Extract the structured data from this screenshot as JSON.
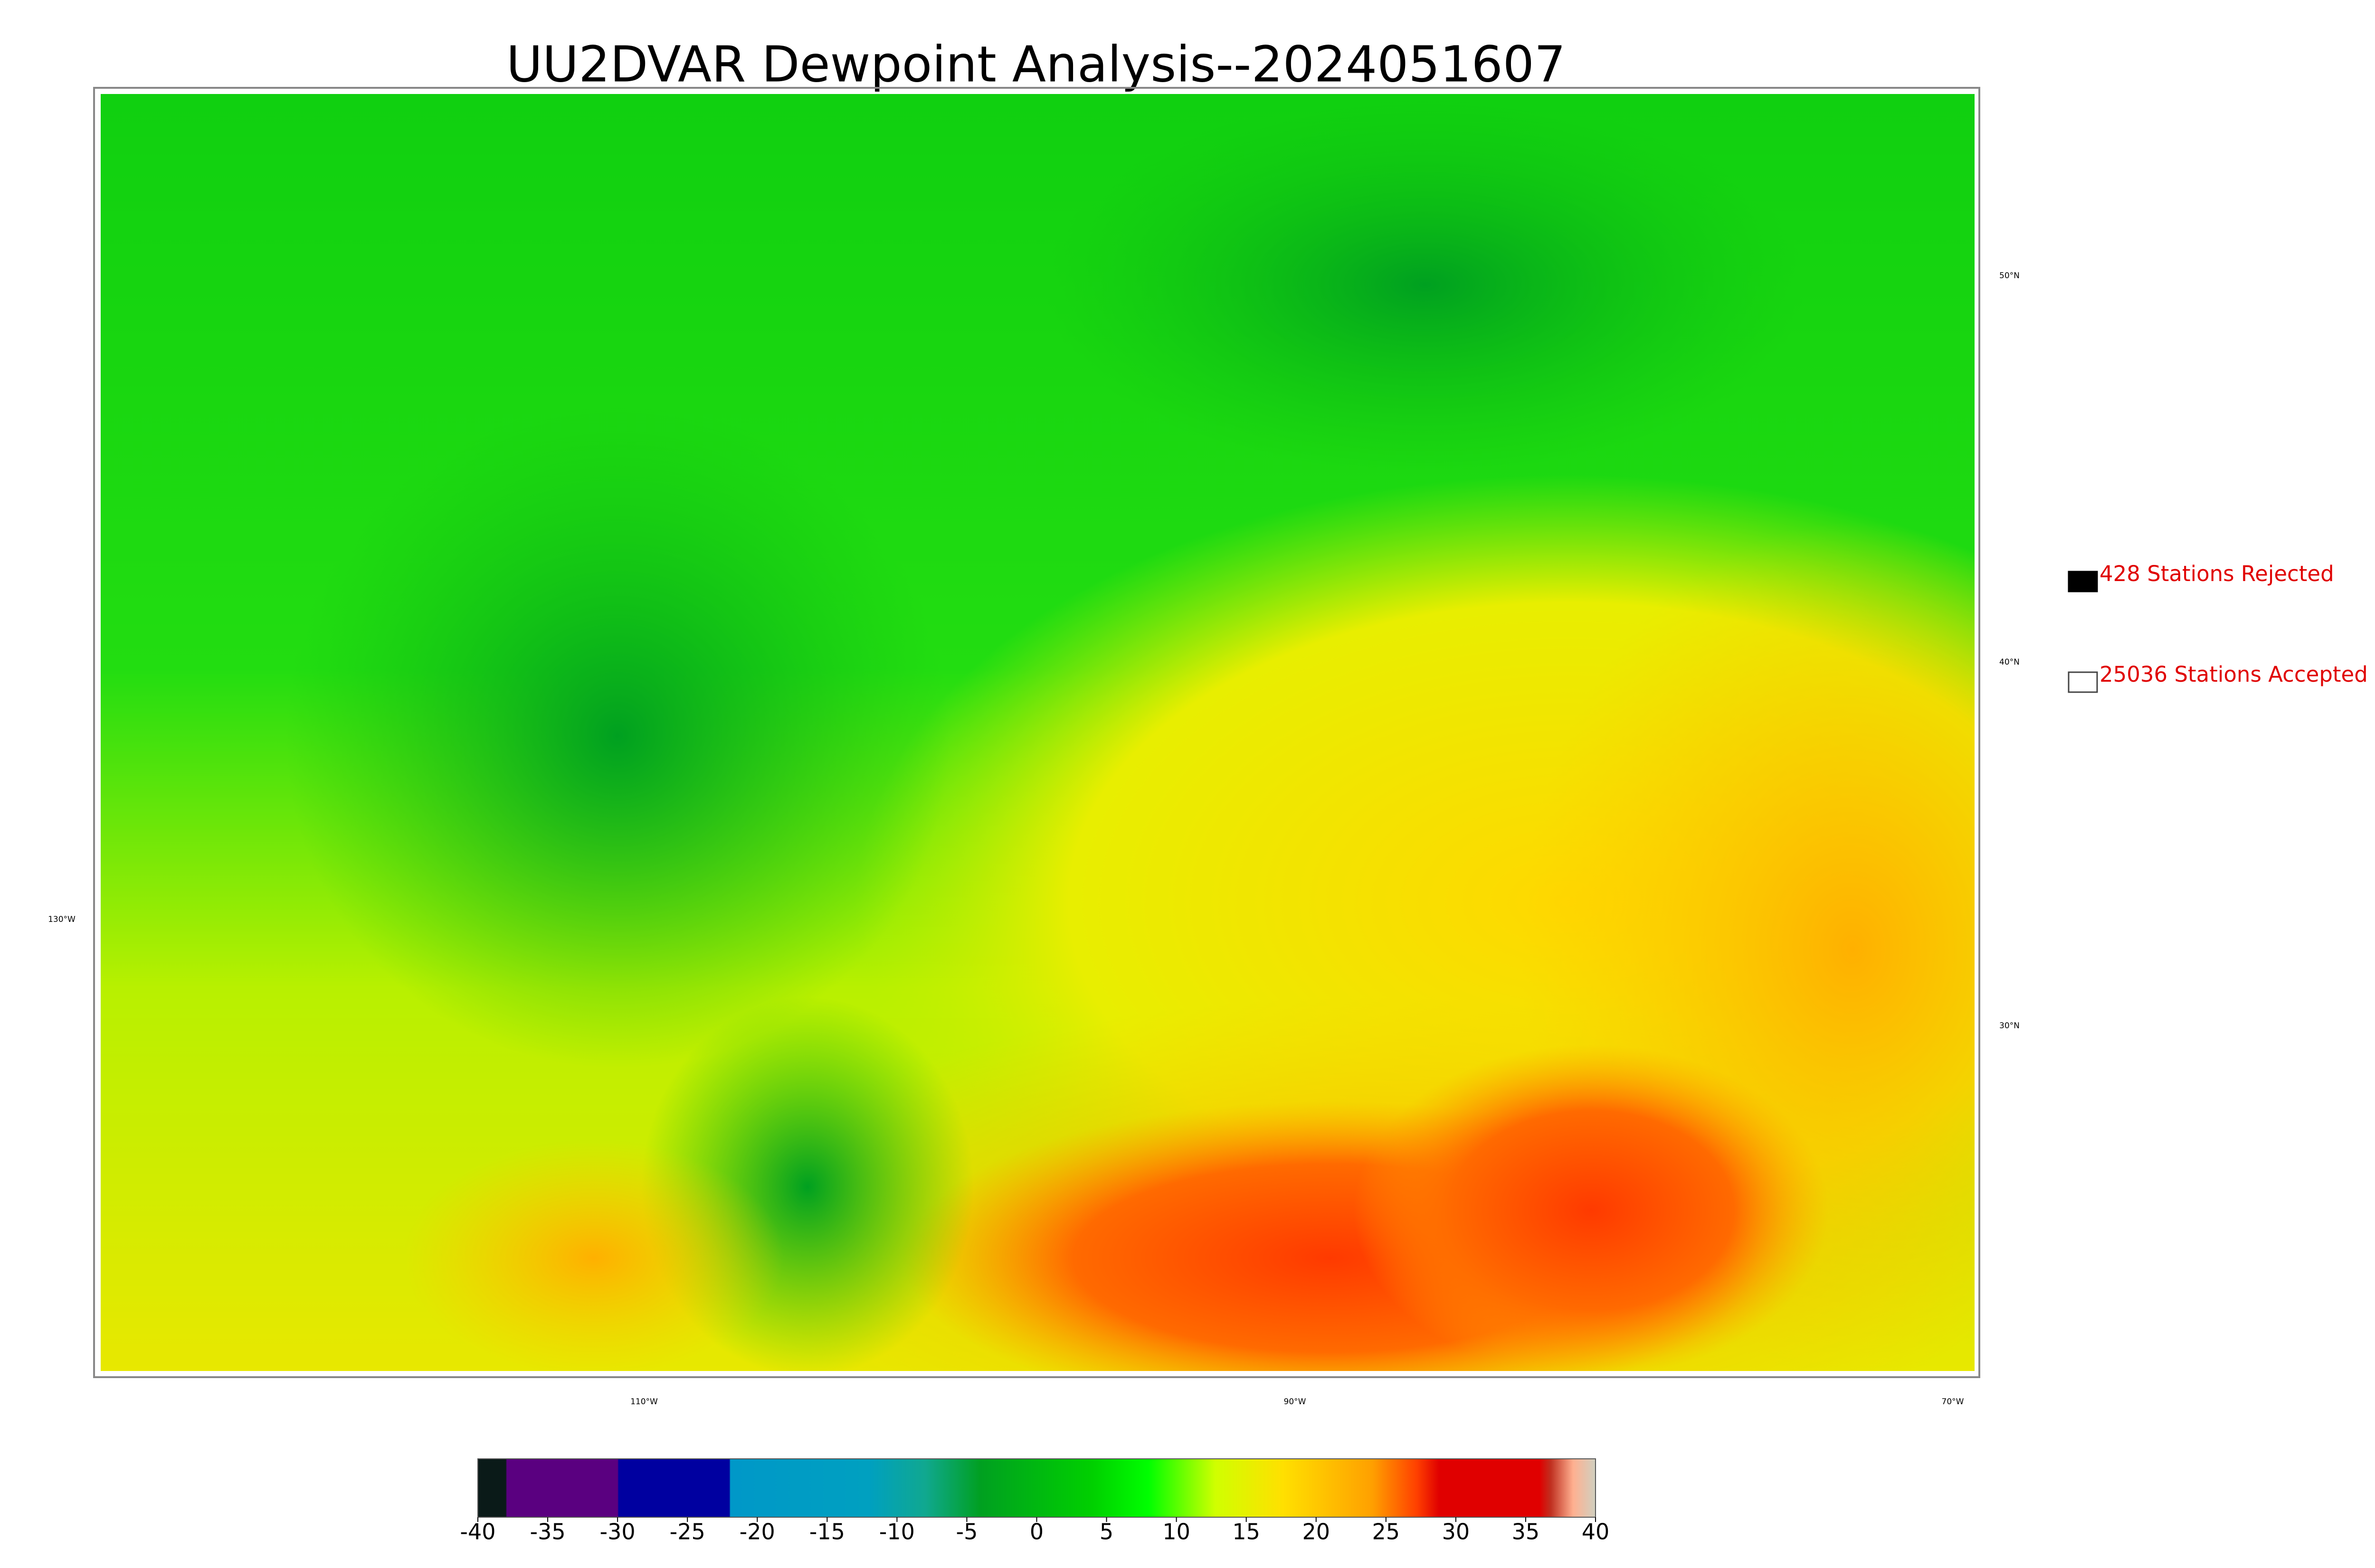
{
  "title": "UU2DVAR Dewpoint Analysis--2024051607",
  "map": {
    "lat_labels": [
      "50°N",
      "40°N",
      "30°N"
    ],
    "lon_labels": [
      "130°W",
      "110°W",
      "90°W",
      "70°W"
    ]
  },
  "legend": [
    {
      "label": "428 Stations Rejected"
    },
    {
      "label": "25036 Stations Accepted"
    }
  ],
  "colorbar": {
    "ticks": [
      -40,
      -35,
      -30,
      -25,
      -20,
      -15,
      -10,
      -5,
      0,
      5,
      10,
      15,
      20,
      25,
      30,
      35,
      40
    ]
  }
}
